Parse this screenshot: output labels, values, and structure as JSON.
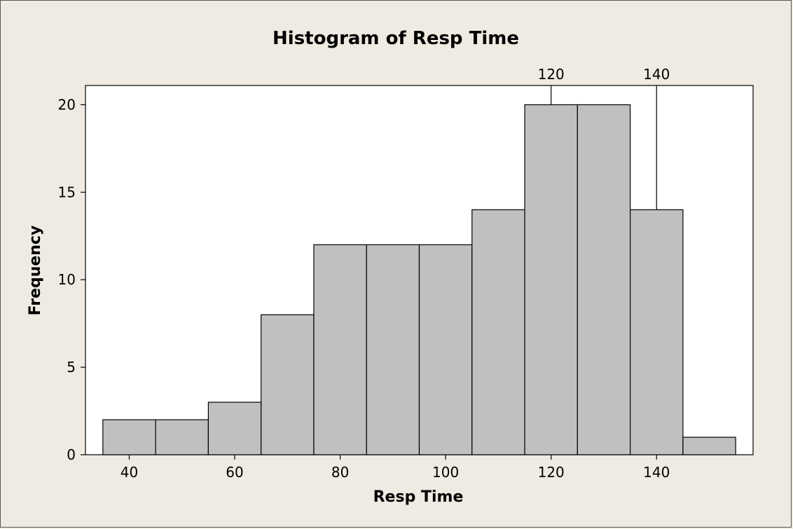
{
  "chart_data": {
    "type": "bar",
    "title": "Histogram of Resp Time",
    "xlabel": "Resp Time",
    "ylabel": "Frequency",
    "bins": [
      {
        "from": 35,
        "to": 45,
        "count": 2
      },
      {
        "from": 45,
        "to": 55,
        "count": 2
      },
      {
        "from": 55,
        "to": 65,
        "count": 3
      },
      {
        "from": 65,
        "to": 75,
        "count": 8
      },
      {
        "from": 75,
        "to": 85,
        "count": 12
      },
      {
        "from": 85,
        "to": 95,
        "count": 12
      },
      {
        "from": 95,
        "to": 105,
        "count": 12
      },
      {
        "from": 105,
        "to": 115,
        "count": 14
      },
      {
        "from": 115,
        "to": 125,
        "count": 20
      },
      {
        "from": 125,
        "to": 135,
        "count": 20
      },
      {
        "from": 135,
        "to": 145,
        "count": 14
      },
      {
        "from": 145,
        "to": 155,
        "count": 1
      }
    ],
    "xticks": [
      40,
      60,
      80,
      100,
      120,
      140
    ],
    "yticks": [
      0,
      5,
      10,
      15,
      20
    ],
    "xlim": [
      31.7,
      158.3
    ],
    "ylim": [
      0,
      21.1
    ],
    "reference_lines": [
      {
        "x": 120,
        "label": "120"
      },
      {
        "x": 140,
        "label": "140"
      }
    ],
    "bar_color": "#c0c0c0",
    "background_color": "#efebe2",
    "grid": false
  }
}
